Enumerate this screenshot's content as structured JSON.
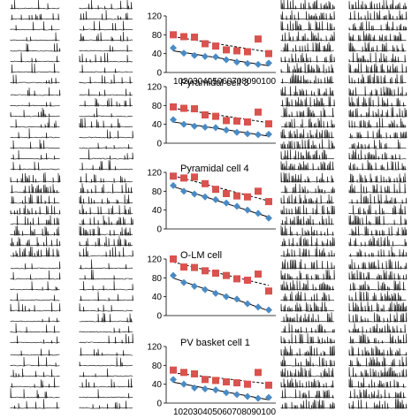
{
  "colors": {
    "series_square": "#d9534f",
    "series_diamond": "#4a8bc4",
    "trendline": "#000000",
    "trace": "#000000"
  },
  "chart_data": [
    {
      "type": "scatter",
      "title": "",
      "xlabel": "",
      "ylabel": "",
      "ylim": [
        0,
        120
      ],
      "yticks": [
        "0",
        "20",
        "40",
        "60",
        "80",
        "100",
        "120"
      ],
      "x": [
        10,
        20,
        30,
        40,
        50,
        60,
        70,
        80,
        90,
        100
      ],
      "xtick_label_row": "102030405060708090100",
      "series": [
        {
          "marker": "square",
          "values": [
            80,
            76,
            75,
            61,
            56,
            48,
            46,
            44,
            71,
            40
          ]
        },
        {
          "marker": "diamond",
          "values": [
            52,
            41,
            36,
            34,
            33,
            27,
            22,
            19,
            17,
            20
          ]
        }
      ],
      "trendlines": true
    },
    {
      "type": "scatter",
      "title": "Pyramidal cell 3",
      "xlabel": "",
      "ylabel": "",
      "ylim": [
        0,
        120
      ],
      "yticks": [
        "0",
        "20",
        "40",
        "60",
        "80",
        "100",
        "120"
      ],
      "x": [
        10,
        20,
        30,
        40,
        50,
        60,
        70,
        80,
        90,
        100
      ],
      "series": [
        {
          "marker": "square",
          "values": [
            77,
            74,
            73,
            60,
            57,
            48,
            47,
            45,
            66,
            41
          ]
        },
        {
          "marker": "diamond",
          "values": [
            50,
            40,
            36,
            34,
            33,
            28,
            23,
            20,
            18,
            19
          ]
        }
      ],
      "trendlines": true
    },
    {
      "type": "scatter",
      "title": "Pyramidal cell 4",
      "xlabel": "",
      "ylabel": "",
      "ylim": [
        0,
        120
      ],
      "yticks": [
        "0",
        "20",
        "40",
        "60",
        "80",
        "100",
        "120"
      ],
      "x": [
        10,
        20,
        30,
        40,
        50,
        60,
        70,
        80,
        90,
        100
      ],
      "series": [
        {
          "marker": "square",
          "values": [
            112,
            108,
            110,
            96,
            84,
            75,
            70,
            68,
            80,
            58
          ]
        },
        {
          "marker": "diamond",
          "values": [
            92,
            80,
            74,
            68,
            62,
            55,
            48,
            40,
            33,
            23
          ]
        }
      ],
      "trendlines": true
    },
    {
      "type": "scatter",
      "title": "O-LM cell",
      "xlabel": "",
      "ylabel": "",
      "ylim": [
        0,
        120
      ],
      "yticks": [
        "0",
        "20",
        "40",
        "60",
        "80",
        "100",
        "120"
      ],
      "x": [
        10,
        20,
        30,
        40,
        50,
        60,
        70,
        80,
        90,
        100
      ],
      "series": [
        {
          "marker": "square",
          "values": [
            120,
            103,
            102,
            95,
            90,
            85,
            78,
            75,
            88,
            52
          ]
        },
        {
          "marker": "diamond",
          "values": [
            85,
            70,
            62,
            55,
            47,
            40,
            35,
            25,
            18,
            12
          ]
        }
      ],
      "trendlines": true
    },
    {
      "type": "scatter",
      "title": "PV basket cell 1",
      "xlabel": "",
      "ylabel": "",
      "ylim": [
        0,
        120
      ],
      "yticks": [
        "0",
        "20",
        "40",
        "60",
        "80",
        "100",
        "120"
      ],
      "x": [
        10,
        20,
        30,
        40,
        50,
        60,
        70,
        80,
        90,
        100
      ],
      "xtick_label_row": "102030405060708090100",
      "series": [
        {
          "marker": "square",
          "values": [
            70,
            65,
            62,
            50,
            48,
            45,
            43,
            40,
            65,
            38
          ]
        },
        {
          "marker": "diamond",
          "values": [
            50,
            40,
            32,
            30,
            28,
            22,
            18,
            14,
            10,
            12
          ]
        }
      ],
      "trendlines": true
    }
  ]
}
